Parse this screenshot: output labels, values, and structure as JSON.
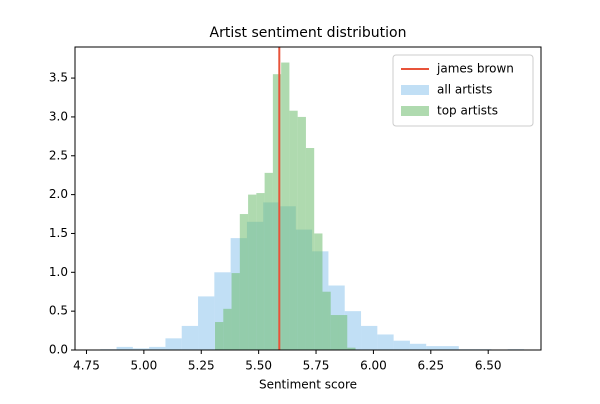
{
  "chart_data": {
    "type": "histogram",
    "title": "Artist sentiment distribution",
    "xlabel": "Sentiment score",
    "xlim": [
      4.7,
      6.73
    ],
    "ylim": [
      0,
      3.9
    ],
    "xticks": [
      4.75,
      {
        "value": 5.0,
        "label": "5.00"
      },
      5.25,
      {
        "value": 5.5,
        "label": "5.50"
      },
      5.75,
      {
        "value": 6.0,
        "label": "6.00"
      },
      6.25,
      {
        "value": 6.5,
        "label": "6.50"
      }
    ],
    "yticks": [
      {
        "value": 0,
        "label": "0.0"
      },
      0.5,
      {
        "value": 1,
        "label": "1.0"
      },
      1.5,
      {
        "value": 2,
        "label": "2.0"
      },
      2.5,
      {
        "value": 3,
        "label": "3.0"
      },
      3.5
    ],
    "legend": "upper right",
    "lines": [
      {
        "name": "james brown",
        "x": 5.59,
        "color": "#e8533a"
      }
    ],
    "series": [
      {
        "name": "all artists",
        "color": "#8ec4ec",
        "bins": [
          4.81,
          4.881,
          4.952,
          5.023,
          5.094,
          5.165,
          5.236,
          5.307,
          5.378,
          5.449,
          5.52,
          5.591,
          5.662,
          5.733,
          5.804,
          5.875,
          5.946,
          6.017,
          6.088,
          6.159,
          6.23,
          6.301,
          6.372,
          6.443,
          6.514,
          6.585,
          6.656
        ],
        "values": [
          0.01,
          0.04,
          0.02,
          0.04,
          0.15,
          0.31,
          0.69,
          1.0,
          1.44,
          1.65,
          1.9,
          1.85,
          1.55,
          1.27,
          0.83,
          0.5,
          0.31,
          0.2,
          0.12,
          0.08,
          0.05,
          0.05,
          0.01,
          0.01,
          0,
          0.01
        ]
      },
      {
        "name": "top artists",
        "color": "#6dbb6d",
        "bins": [
          5.31,
          5.346,
          5.382,
          5.418,
          5.454,
          5.49,
          5.526,
          5.562,
          5.598,
          5.634,
          5.67,
          5.706,
          5.742,
          5.778,
          5.814,
          5.85,
          5.886,
          5.922
        ],
        "values": [
          0.36,
          0.53,
          0.99,
          1.75,
          2.0,
          2.02,
          2.28,
          3.55,
          3.7,
          3.08,
          3.0,
          2.6,
          1.5,
          0.75,
          0.45,
          0.45,
          0.03
        ]
      }
    ]
  }
}
